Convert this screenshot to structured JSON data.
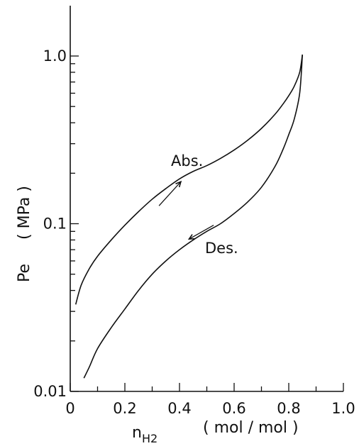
{
  "chart_data": {
    "type": "line",
    "x_scale": "linear",
    "y_scale": "log",
    "xlim": [
      0,
      1.0
    ],
    "ylim": [
      0.01,
      2.0
    ],
    "x_ticks": [
      0,
      0.2,
      0.4,
      0.6,
      0.8,
      1.0
    ],
    "x_tick_labels": [
      "0",
      "0.2",
      "0.4",
      "0.6",
      "0.8",
      "1.0"
    ],
    "y_ticks": [
      0.01,
      0.1,
      1.0
    ],
    "y_tick_labels": [
      "0.01",
      "0.1",
      "1.0"
    ],
    "xlabel": {
      "symbol": "n",
      "subscript": "H2",
      "unit": "( mol / mol )"
    },
    "ylabel": {
      "symbol": "Pe",
      "unit": "( MPa )"
    },
    "grid": false,
    "legend": "none",
    "series": [
      {
        "name": "Abs.",
        "x": [
          0.02,
          0.04,
          0.07,
          0.1,
          0.15,
          0.2,
          0.25,
          0.3,
          0.35,
          0.4,
          0.45,
          0.5,
          0.55,
          0.6,
          0.65,
          0.7,
          0.75,
          0.78,
          0.8,
          0.82,
          0.84,
          0.85
        ],
        "y": [
          0.033,
          0.043,
          0.054,
          0.064,
          0.08,
          0.098,
          0.118,
          0.14,
          0.162,
          0.185,
          0.205,
          0.222,
          0.245,
          0.275,
          0.315,
          0.37,
          0.45,
          0.52,
          0.58,
          0.66,
          0.8,
          1.02
        ]
      },
      {
        "name": "Des.",
        "x": [
          0.85,
          0.84,
          0.82,
          0.8,
          0.78,
          0.75,
          0.7,
          0.65,
          0.6,
          0.55,
          0.5,
          0.45,
          0.4,
          0.35,
          0.3,
          0.25,
          0.2,
          0.15,
          0.1,
          0.07,
          0.05
        ],
        "y": [
          1.02,
          0.6,
          0.42,
          0.34,
          0.28,
          0.22,
          0.165,
          0.135,
          0.115,
          0.1,
          0.09,
          0.08,
          0.07,
          0.06,
          0.05,
          0.04,
          0.031,
          0.024,
          0.018,
          0.014,
          0.012
        ]
      }
    ],
    "annotations": [
      {
        "text": "Abs.",
        "near_series": "Abs.",
        "arrow": "up-right"
      },
      {
        "text": "Des.",
        "near_series": "Des.",
        "arrow": "down-left"
      }
    ]
  }
}
